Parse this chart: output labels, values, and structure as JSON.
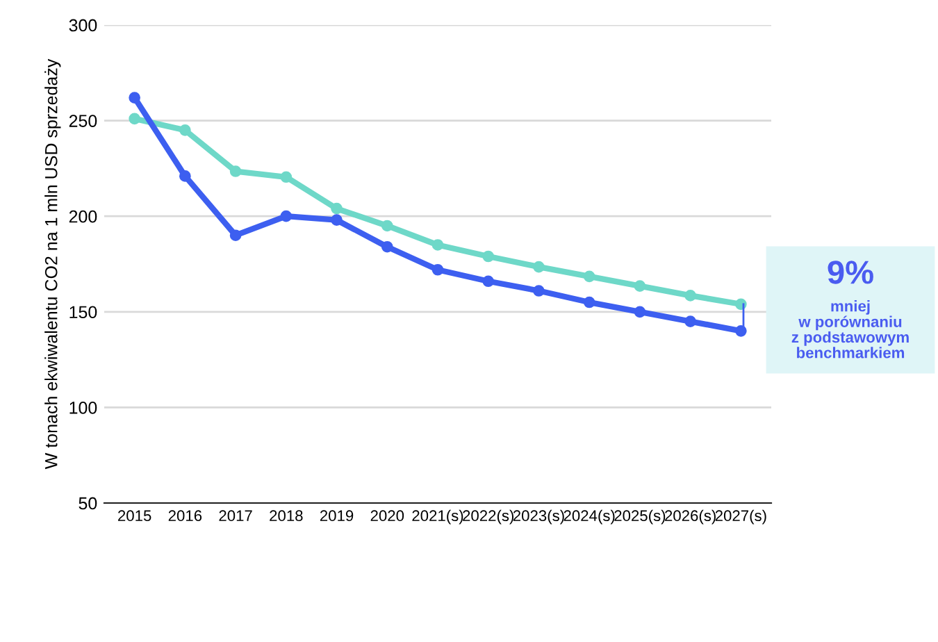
{
  "chart_data": {
    "type": "line",
    "ylabel": "W tonach ekwiwalentu CO2 na 1 mln USD sprzedaży",
    "categories": [
      "2015",
      "2016",
      "2017",
      "2018",
      "2019",
      "2020",
      "2021(s)",
      "2022(s)",
      "2023(s)",
      "2024(s)",
      "2025(s)",
      "2026(s)",
      "2027(s)"
    ],
    "series": [
      {
        "color": "#6ed8c8",
        "values": [
          251,
          245,
          223.5,
          220.5,
          204,
          195,
          185,
          179,
          173.5,
          168.5,
          163.5,
          158.5,
          154
        ]
      },
      {
        "color": "#3d5ff0",
        "values": [
          262,
          221,
          190,
          200,
          198,
          184,
          172,
          166,
          161,
          155,
          150,
          145,
          140
        ]
      }
    ],
    "ylim": [
      50,
      300
    ],
    "yticks": [
      50,
      100,
      150,
      200,
      250,
      300
    ],
    "grid": "y",
    "marker": "circle",
    "line_style": "solid",
    "legend": false,
    "annotations": [
      "9%",
      "mniej\nw porównaniu\nz podstawowym\nbenchmarkiem"
    ]
  }
}
